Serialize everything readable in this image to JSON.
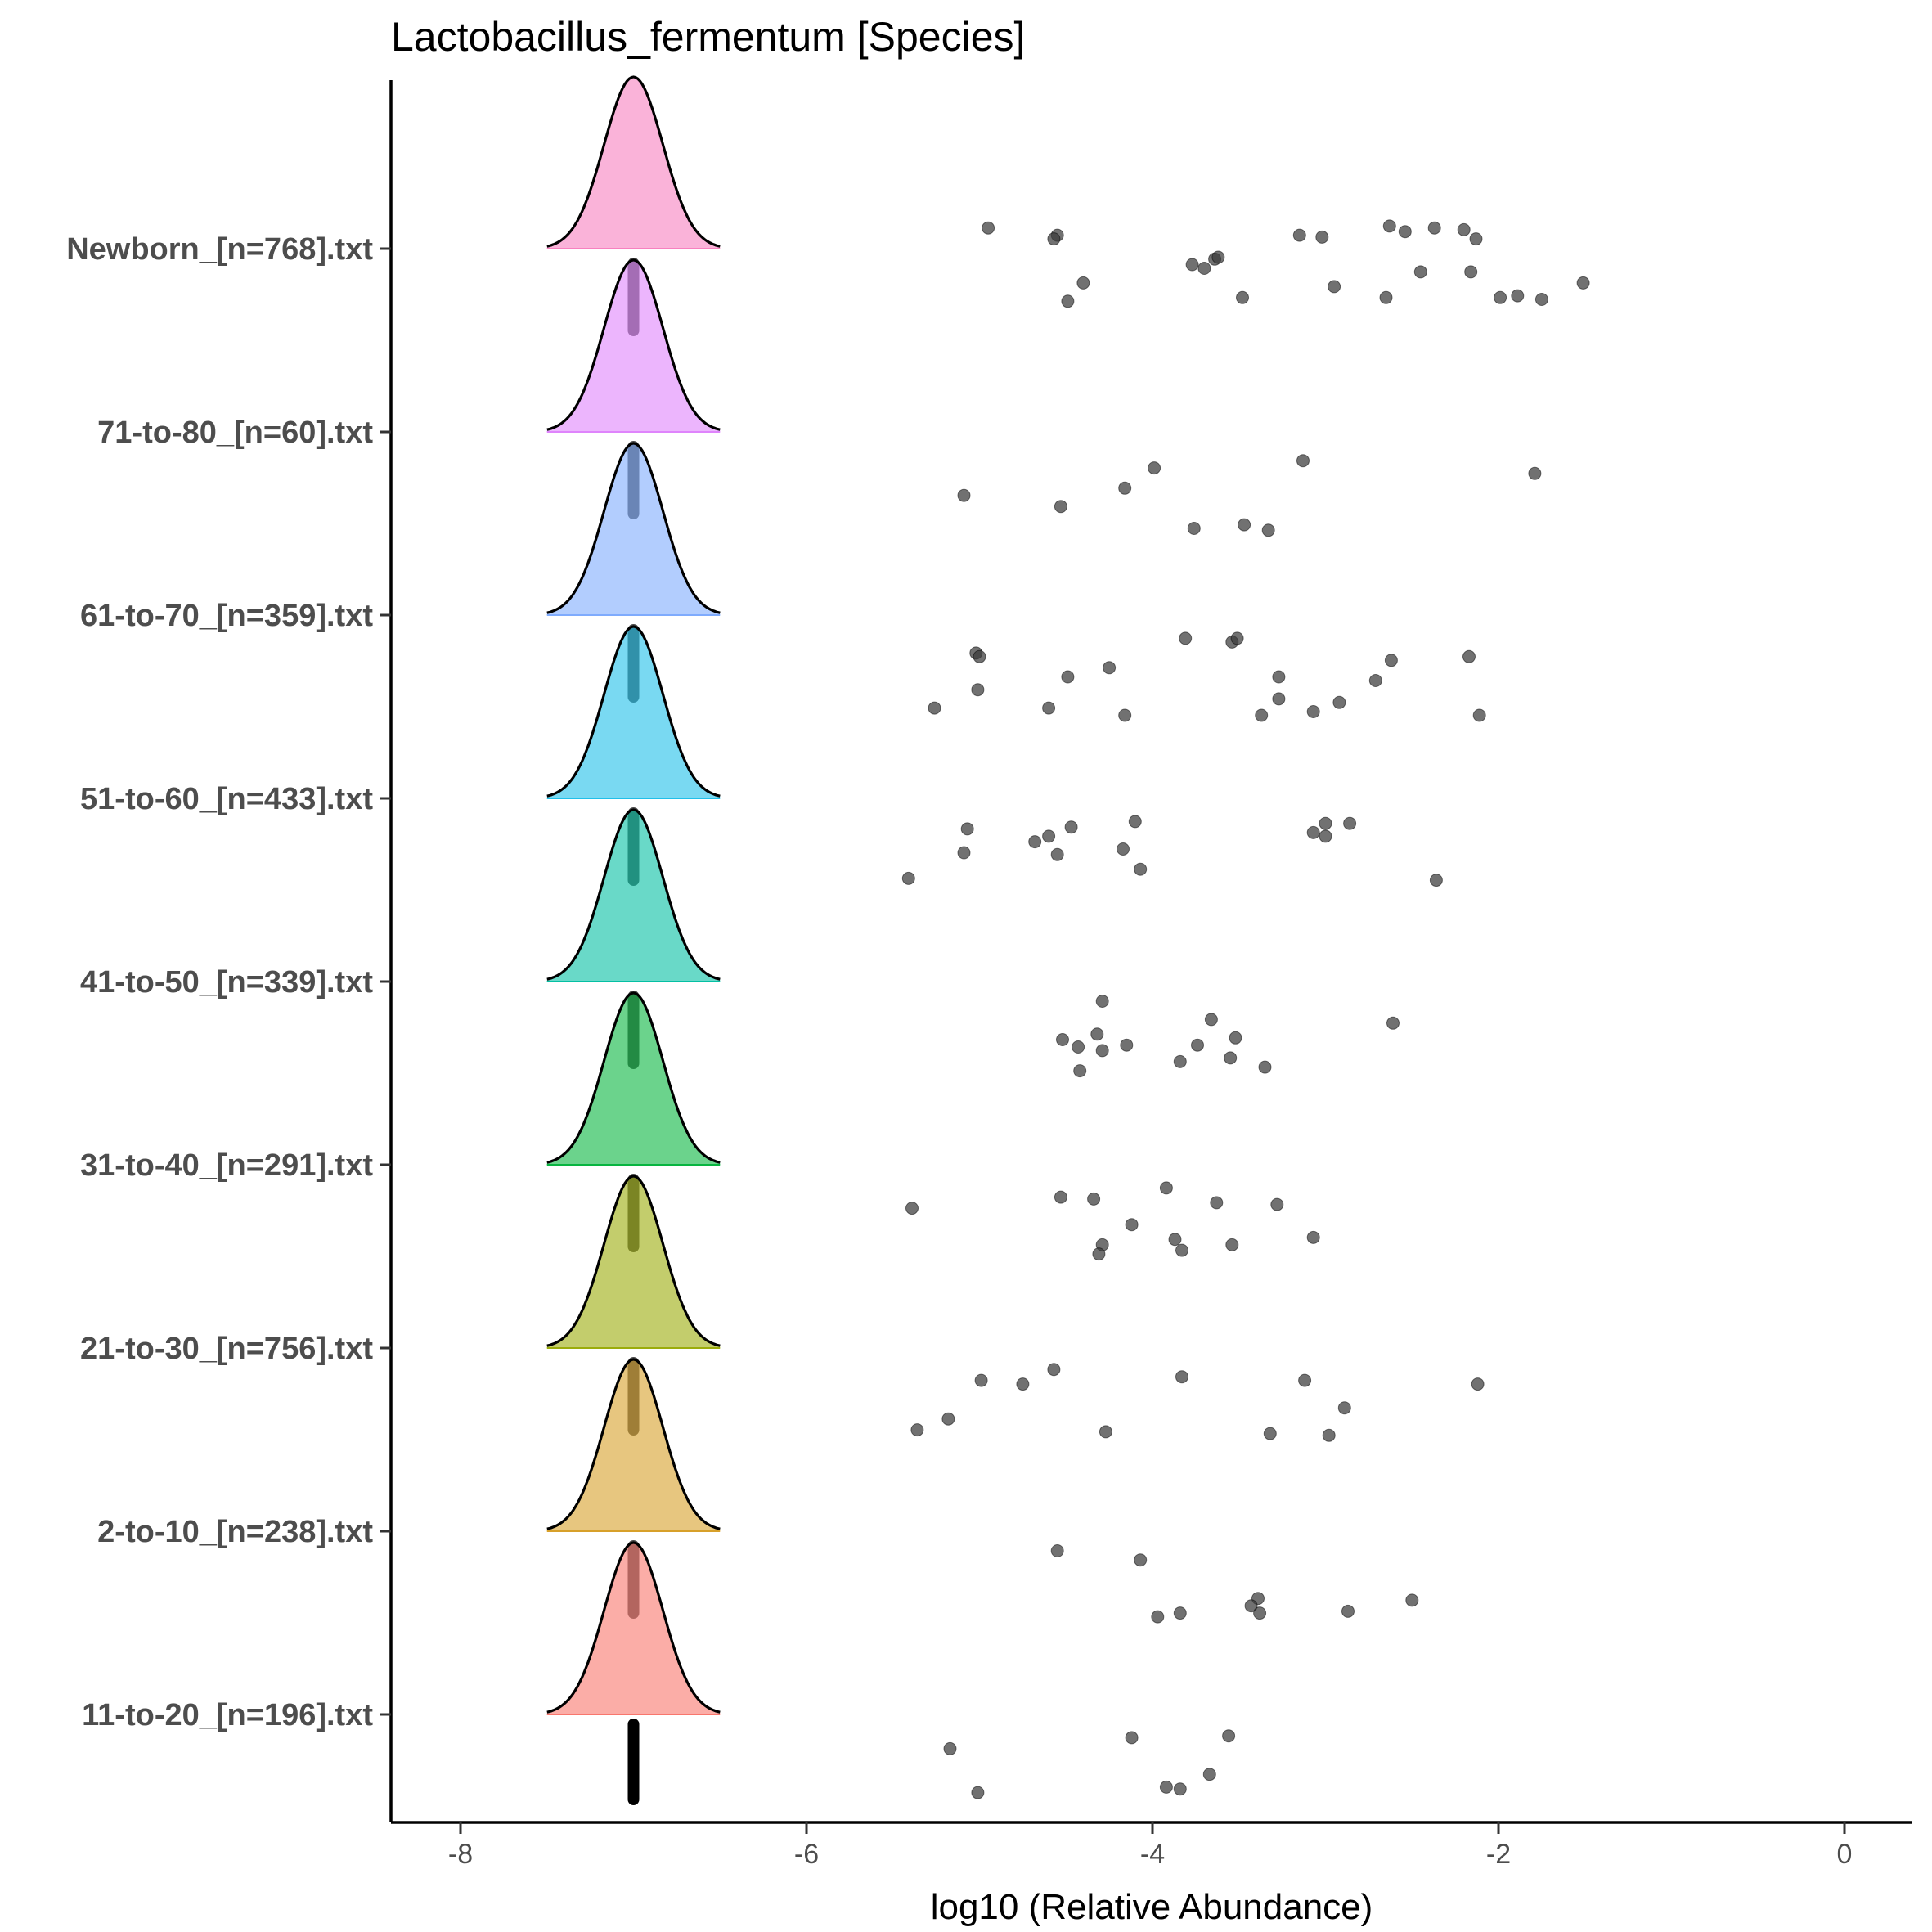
{
  "chart_data": {
    "type": "ridgeline",
    "title": "Lactobacillus_fermentum [Species]",
    "xlabel": "log10 (Relative Abundance)",
    "ylabel": "",
    "xlim": [
      -8.4,
      0.4
    ],
    "xticks": [
      -8,
      -6,
      -4,
      -2,
      0
    ],
    "grid": false,
    "legend": "none",
    "density_center": -7,
    "density_half_width": 0.5,
    "groups": [
      {
        "name": "Newborn_[n=768].txt",
        "color": "#f781bf",
        "points": [
          [
            -4.95,
            0.18
          ],
          [
            -4.55,
            0.14
          ],
          [
            -4.57,
            0.12
          ],
          [
            -3.15,
            0.14
          ],
          [
            -3.02,
            0.13
          ],
          [
            -2.63,
            0.19
          ],
          [
            -2.54,
            0.16
          ],
          [
            -2.37,
            0.18
          ],
          [
            -2.2,
            0.17
          ],
          [
            -2.13,
            0.12
          ],
          [
            -3.77,
            -0.02
          ],
          [
            -3.7,
            -0.04
          ],
          [
            -3.64,
            0.01
          ],
          [
            -3.62,
            0.02
          ],
          [
            -4.4,
            -0.12
          ],
          [
            -4.49,
            -0.22
          ],
          [
            -3.48,
            -0.2
          ],
          [
            -2.95,
            -0.14
          ],
          [
            -2.65,
            -0.2
          ],
          [
            -2.45,
            -0.06
          ],
          [
            -2.16,
            -0.06
          ],
          [
            -1.99,
            -0.2
          ],
          [
            -1.89,
            -0.19
          ],
          [
            -1.75,
            -0.21
          ],
          [
            -1.51,
            -0.12
          ]
        ]
      },
      {
        "name": "71-to-80_[n=60].txt",
        "color": "#df84fc",
        "points": [
          [
            -5.09,
            -0.28
          ],
          [
            -4.16,
            -0.24
          ],
          [
            -3.99,
            -0.13
          ],
          [
            -3.13,
            -0.09
          ],
          [
            -1.79,
            -0.16
          ],
          [
            -4.53,
            -0.34
          ],
          [
            -3.76,
            -0.46
          ],
          [
            -3.47,
            -0.44
          ],
          [
            -3.33,
            -0.47
          ]
        ]
      },
      {
        "name": "61-to-70_[n=359].txt",
        "color": "#7fabfd",
        "points": [
          [
            -5.02,
            -0.14
          ],
          [
            -5.0,
            -0.16
          ],
          [
            -3.81,
            -0.06
          ],
          [
            -3.54,
            -0.08
          ],
          [
            -3.51,
            -0.06
          ],
          [
            -2.62,
            -0.18
          ],
          [
            -2.17,
            -0.16
          ],
          [
            -4.25,
            -0.22
          ],
          [
            -4.49,
            -0.27
          ],
          [
            -3.27,
            -0.27
          ],
          [
            -2.71,
            -0.29
          ],
          [
            -5.01,
            -0.34
          ],
          [
            -5.26,
            -0.44
          ],
          [
            -4.6,
            -0.44
          ],
          [
            -4.16,
            -0.48
          ],
          [
            -3.27,
            -0.39
          ],
          [
            -3.37,
            -0.48
          ],
          [
            -3.07,
            -0.46
          ],
          [
            -2.92,
            -0.41
          ],
          [
            -2.11,
            -0.48
          ]
        ]
      },
      {
        "name": "51-to-60_[n=433].txt",
        "color": "#20bfea",
        "points": [
          [
            -5.07,
            -0.1
          ],
          [
            -4.47,
            -0.09
          ],
          [
            -4.1,
            -0.06
          ],
          [
            -3.07,
            -0.12
          ],
          [
            -3.0,
            -0.07
          ],
          [
            -2.86,
            -0.07
          ],
          [
            -3.0,
            -0.14
          ],
          [
            -4.68,
            -0.17
          ],
          [
            -4.6,
            -0.14
          ],
          [
            -4.17,
            -0.21
          ],
          [
            -5.09,
            -0.23
          ],
          [
            -4.55,
            -0.24
          ],
          [
            -4.07,
            -0.32
          ],
          [
            -5.41,
            -0.37
          ],
          [
            -2.36,
            -0.38
          ]
        ]
      },
      {
        "name": "41-to-50_[n=339].txt",
        "color": "#05c0a3",
        "points": [
          [
            -4.29,
            -0.04
          ],
          [
            -3.66,
            -0.14
          ],
          [
            -2.61,
            -0.16
          ],
          [
            -4.32,
            -0.22
          ],
          [
            -4.52,
            -0.25
          ],
          [
            -4.43,
            -0.29
          ],
          [
            -3.52,
            -0.24
          ],
          [
            -4.15,
            -0.28
          ],
          [
            -3.74,
            -0.28
          ],
          [
            -4.29,
            -0.31
          ],
          [
            -3.84,
            -0.37
          ],
          [
            -3.55,
            -0.35
          ],
          [
            -4.42,
            -0.42
          ],
          [
            -3.35,
            -0.4
          ]
        ]
      },
      {
        "name": "31-to-40_[n=291].txt",
        "color": "#08b540",
        "points": [
          [
            -3.92,
            -0.06
          ],
          [
            -4.53,
            -0.11
          ],
          [
            -4.34,
            -0.12
          ],
          [
            -3.63,
            -0.14
          ],
          [
            -3.28,
            -0.15
          ],
          [
            -5.39,
            -0.17
          ],
          [
            -4.12,
            -0.26
          ],
          [
            -3.87,
            -0.34
          ],
          [
            -4.29,
            -0.37
          ],
          [
            -3.54,
            -0.37
          ],
          [
            -3.07,
            -0.33
          ],
          [
            -4.31,
            -0.42
          ],
          [
            -3.83,
            -0.4
          ]
        ]
      },
      {
        "name": "21-to-30_[n=756].txt",
        "color": "#9bac0a",
        "points": [
          [
            -4.57,
            -0.05
          ],
          [
            -3.83,
            -0.09
          ],
          [
            -4.99,
            -0.11
          ],
          [
            -4.75,
            -0.13
          ],
          [
            -3.12,
            -0.11
          ],
          [
            -2.12,
            -0.13
          ],
          [
            -2.89,
            -0.26
          ],
          [
            -5.18,
            -0.32
          ],
          [
            -5.36,
            -0.38
          ],
          [
            -4.27,
            -0.39
          ],
          [
            -3.32,
            -0.4
          ],
          [
            -2.98,
            -0.41
          ]
        ]
      },
      {
        "name": "2-to-10_[n=238].txt",
        "color": "#d7a02a",
        "points": [
          [
            -4.55,
            -0.04
          ],
          [
            -4.07,
            -0.09
          ],
          [
            -3.39,
            -0.3
          ],
          [
            -2.5,
            -0.31
          ],
          [
            -3.43,
            -0.34
          ],
          [
            -3.38,
            -0.38
          ],
          [
            -3.84,
            -0.38
          ],
          [
            -3.97,
            -0.4
          ],
          [
            -2.87,
            -0.37
          ]
        ]
      },
      {
        "name": "11-to-20_[n=196].txt",
        "color": "#f8766d",
        "points": [
          [
            -3.56,
            -0.05
          ],
          [
            -4.12,
            -0.06
          ],
          [
            -5.17,
            -0.12
          ],
          [
            -3.67,
            -0.26
          ],
          [
            -3.92,
            -0.33
          ],
          [
            -3.84,
            -0.34
          ],
          [
            -5.01,
            -0.36
          ]
        ]
      }
    ]
  }
}
